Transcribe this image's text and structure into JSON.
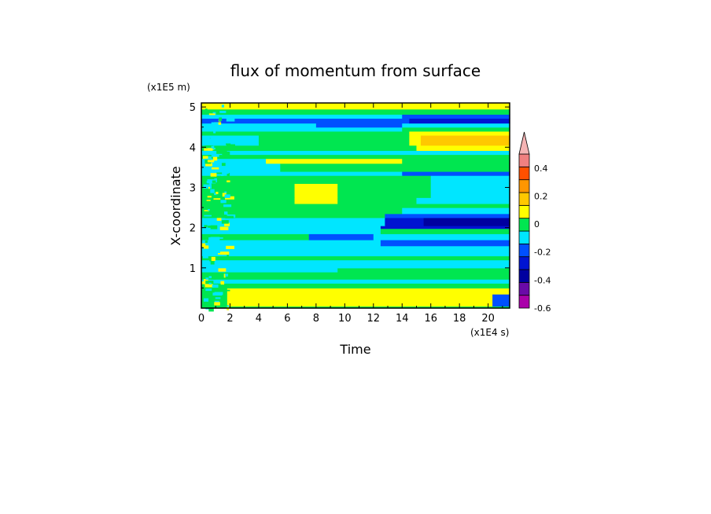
{
  "chart_data": {
    "type": "heatmap",
    "title": "flux of momentum from surface",
    "xlabel": "Time",
    "ylabel": "X-coordinate",
    "x_unit_label": "(x1E4 s)",
    "y_unit_label": "(x1E5 m)",
    "xlim": [
      0,
      21.5
    ],
    "ylim": [
      0,
      5.1
    ],
    "x_ticks": [
      "0",
      "2",
      "4",
      "6",
      "8",
      "10",
      "12",
      "14",
      "16",
      "18",
      "20"
    ],
    "y_ticks": [
      "1",
      "2",
      "3",
      "4",
      "5"
    ],
    "colorbar": {
      "levels": [
        -0.6,
        -0.5,
        -0.4,
        -0.3,
        -0.2,
        -0.1,
        0,
        0.1,
        0.2,
        0.3,
        0.4,
        0.5
      ],
      "tick_labels": [
        "-0.6",
        "-0.4",
        "-0.2",
        "0",
        "0.2",
        "0.4"
      ],
      "colors": [
        "#aa00aa",
        "#6a0aa8",
        "#0000a0",
        "#0014d2",
        "#0050ff",
        "#00e6ff",
        "#00e650",
        "#ffff00",
        "#ffc800",
        "#ff9600",
        "#ff5000",
        "#f08080"
      ],
      "extend": "max",
      "extend_color": "#f5b4b4"
    },
    "bands": [
      {
        "y0": 0.0,
        "y1": 0.05,
        "segments": [
          [
            0,
            21.5,
            0.04
          ]
        ]
      },
      {
        "y0": 0.05,
        "y1": 0.35,
        "segments": [
          [
            0,
            1.8,
            0.04
          ],
          [
            1.8,
            20.3,
            0.15
          ],
          [
            20.3,
            21.5,
            -0.15
          ]
        ]
      },
      {
        "y0": 0.35,
        "y1": 0.5,
        "segments": [
          [
            0,
            1.8,
            0.04
          ],
          [
            1.8,
            21.5,
            0.15
          ]
        ]
      },
      {
        "y0": 0.5,
        "y1": 0.62,
        "segments": [
          [
            0,
            21.5,
            0.05
          ]
        ]
      },
      {
        "y0": 0.62,
        "y1": 0.72,
        "segments": [
          [
            0,
            21.5,
            -0.05
          ]
        ]
      },
      {
        "y0": 0.72,
        "y1": 0.9,
        "segments": [
          [
            0,
            21.5,
            0.05
          ]
        ]
      },
      {
        "y0": 0.9,
        "y1": 1.0,
        "segments": [
          [
            0,
            9.5,
            -0.05
          ],
          [
            9.5,
            21.5,
            0.05
          ]
        ]
      },
      {
        "y0": 1.0,
        "y1": 1.2,
        "segments": [
          [
            0,
            21.5,
            -0.05
          ]
        ]
      },
      {
        "y0": 1.2,
        "y1": 1.3,
        "segments": [
          [
            0,
            21.5,
            0.05
          ]
        ]
      },
      {
        "y0": 1.3,
        "y1": 1.55,
        "segments": [
          [
            0,
            21.5,
            -0.05
          ]
        ]
      },
      {
        "y0": 1.55,
        "y1": 1.7,
        "segments": [
          [
            0,
            12.5,
            -0.05
          ],
          [
            12.5,
            21.5,
            -0.15
          ]
        ]
      },
      {
        "y0": 1.7,
        "y1": 1.85,
        "segments": [
          [
            0,
            7.5,
            0.05
          ],
          [
            7.5,
            12.0,
            -0.15
          ],
          [
            12.0,
            21.5,
            -0.05
          ]
        ]
      },
      {
        "y0": 1.85,
        "y1": 1.98,
        "segments": [
          [
            0,
            12.5,
            -0.05
          ],
          [
            12.5,
            21.5,
            0.05
          ]
        ]
      },
      {
        "y0": 1.98,
        "y1": 2.05,
        "segments": [
          [
            0,
            12.5,
            -0.05
          ],
          [
            12.5,
            21.5,
            -0.25
          ]
        ]
      },
      {
        "y0": 2.05,
        "y1": 2.25,
        "segments": [
          [
            0,
            12.8,
            -0.05
          ],
          [
            12.8,
            15.5,
            -0.25
          ],
          [
            15.5,
            21.5,
            -0.35
          ]
        ]
      },
      {
        "y0": 2.25,
        "y1": 2.35,
        "segments": [
          [
            0,
            12.8,
            0.05
          ],
          [
            12.8,
            21.5,
            -0.15
          ]
        ]
      },
      {
        "y0": 2.35,
        "y1": 2.5,
        "segments": [
          [
            0,
            14.0,
            0.05
          ],
          [
            14.0,
            21.5,
            -0.05
          ]
        ]
      },
      {
        "y0": 2.5,
        "y1": 2.6,
        "segments": [
          [
            0,
            21.5,
            0.05
          ]
        ]
      },
      {
        "y0": 2.6,
        "y1": 2.75,
        "segments": [
          [
            0,
            6.5,
            0.05
          ],
          [
            6.5,
            9.5,
            0.15
          ],
          [
            9.5,
            15.0,
            0.05
          ],
          [
            15.0,
            21.5,
            -0.05
          ]
        ]
      },
      {
        "y0": 2.75,
        "y1": 3.1,
        "segments": [
          [
            0,
            6.5,
            0.05
          ],
          [
            6.5,
            9.5,
            0.15
          ],
          [
            9.5,
            16.0,
            0.05
          ],
          [
            16.0,
            21.5,
            -0.05
          ]
        ]
      },
      {
        "y0": 3.1,
        "y1": 3.3,
        "segments": [
          [
            0,
            16.0,
            0.05
          ],
          [
            16.0,
            21.5,
            -0.05
          ]
        ]
      },
      {
        "y0": 3.3,
        "y1": 3.4,
        "segments": [
          [
            0,
            14.0,
            -0.05
          ],
          [
            14.0,
            21.5,
            -0.15
          ]
        ]
      },
      {
        "y0": 3.4,
        "y1": 3.6,
        "segments": [
          [
            0,
            5.5,
            -0.05
          ],
          [
            5.5,
            21.5,
            0.05
          ]
        ]
      },
      {
        "y0": 3.6,
        "y1": 3.72,
        "segments": [
          [
            0,
            4.5,
            -0.05
          ],
          [
            4.5,
            14.0,
            0.15
          ],
          [
            14.0,
            21.5,
            0.05
          ]
        ]
      },
      {
        "y0": 3.72,
        "y1": 3.82,
        "segments": [
          [
            0,
            21.5,
            0.05
          ]
        ]
      },
      {
        "y0": 3.82,
        "y1": 3.92,
        "segments": [
          [
            0,
            21.5,
            -0.05
          ]
        ]
      },
      {
        "y0": 3.92,
        "y1": 4.05,
        "segments": [
          [
            0,
            15.0,
            0.05
          ],
          [
            15.0,
            21.5,
            0.15
          ]
        ]
      },
      {
        "y0": 4.05,
        "y1": 4.3,
        "segments": [
          [
            0,
            4.0,
            -0.05
          ],
          [
            4.0,
            14.5,
            0.05
          ],
          [
            14.5,
            15.3,
            0.15
          ],
          [
            15.3,
            21.5,
            0.25
          ]
        ]
      },
      {
        "y0": 4.3,
        "y1": 4.4,
        "segments": [
          [
            0,
            14.5,
            0.05
          ],
          [
            14.5,
            21.5,
            0.15
          ]
        ]
      },
      {
        "y0": 4.4,
        "y1": 4.5,
        "segments": [
          [
            0,
            14.0,
            -0.05
          ],
          [
            14.0,
            21.5,
            0.05
          ]
        ]
      },
      {
        "y0": 4.5,
        "y1": 4.6,
        "segments": [
          [
            0,
            8.0,
            -0.05
          ],
          [
            8.0,
            14.0,
            -0.15
          ],
          [
            14.0,
            21.5,
            -0.05
          ]
        ]
      },
      {
        "y0": 4.6,
        "y1": 4.72,
        "segments": [
          [
            0,
            14.5,
            -0.15
          ],
          [
            14.5,
            21.5,
            -0.25
          ]
        ]
      },
      {
        "y0": 4.72,
        "y1": 4.82,
        "segments": [
          [
            0,
            14.0,
            -0.05
          ],
          [
            14.0,
            21.5,
            -0.15
          ]
        ]
      },
      {
        "y0": 4.82,
        "y1": 4.95,
        "segments": [
          [
            0,
            21.5,
            0.05
          ]
        ]
      },
      {
        "y0": 4.95,
        "y1": 5.1,
        "segments": [
          [
            0,
            21.5,
            0.15
          ]
        ]
      }
    ]
  }
}
